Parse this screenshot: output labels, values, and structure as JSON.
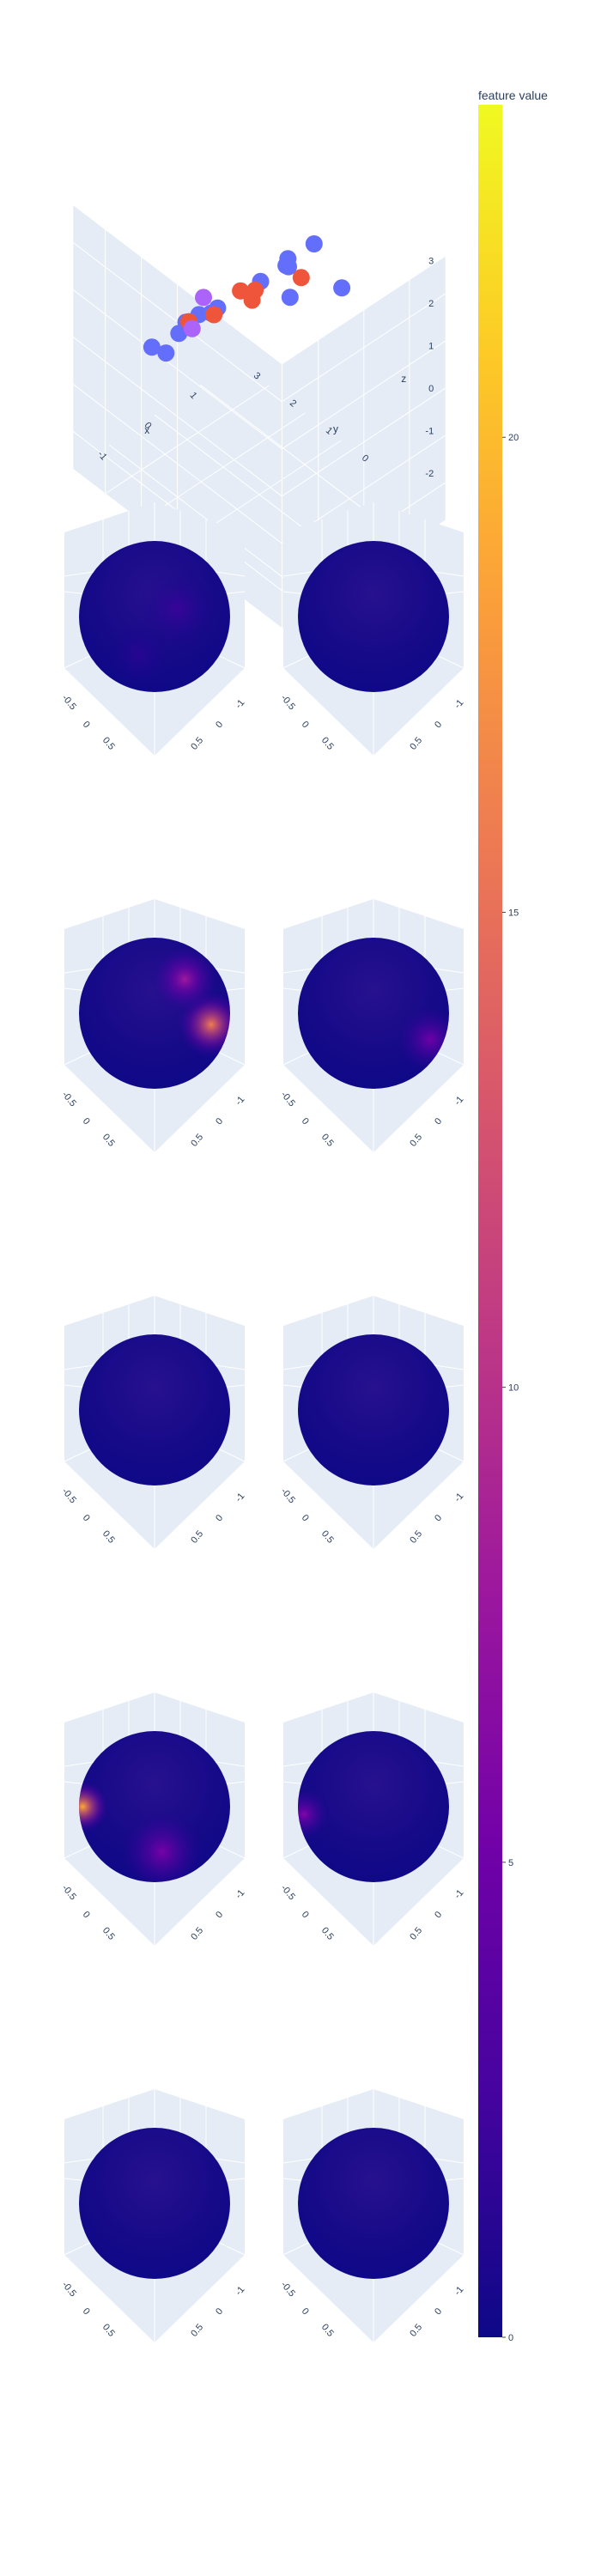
{
  "chart_data": [
    {
      "type": "scatter3d",
      "axes": {
        "x": {
          "title": "x",
          "ticks": [
            "-1",
            "0",
            "1"
          ]
        },
        "y": {
          "title": "y",
          "ticks": [
            "0",
            "1",
            "2",
            "3"
          ]
        },
        "z": {
          "title": "z",
          "ticks": [
            "3",
            "2",
            "1",
            "0",
            "-1",
            "-2"
          ]
        }
      },
      "colors": {
        "blue": "#636efa",
        "red": "#ef553b",
        "purple": "#ab63fa"
      },
      "points": [
        {
          "x": 0.2,
          "y": -0.6,
          "z": 1.6,
          "color": "blue"
        },
        {
          "x": -0.6,
          "y": 0.4,
          "z": 1.3,
          "color": "blue"
        },
        {
          "x": 1.1,
          "y": -0.9,
          "z": 1.4,
          "color": "blue"
        },
        {
          "x": 1.6,
          "y": 0.5,
          "z": 1.2,
          "color": "blue"
        },
        {
          "x": -0.9,
          "y": 0.9,
          "z": 0.9,
          "color": "blue"
        },
        {
          "x": -1.1,
          "y": 1.2,
          "z": 0.2,
          "color": "blue"
        },
        {
          "x": -0.5,
          "y": 1.6,
          "z": 0.0,
          "color": "blue"
        },
        {
          "x": 0.1,
          "y": 1.8,
          "z": -0.1,
          "color": "blue"
        },
        {
          "x": 0.9,
          "y": 1.1,
          "z": 0.5,
          "color": "blue"
        },
        {
          "x": 1.3,
          "y": 0.9,
          "z": 0.7,
          "color": "blue"
        },
        {
          "x": 1.5,
          "y": 1.1,
          "z": 0.6,
          "color": "blue"
        },
        {
          "x": 0.8,
          "y": 0.2,
          "z": 1.4,
          "color": "blue"
        },
        {
          "x": -0.3,
          "y": 2.6,
          "z": -1.0,
          "color": "blue"
        },
        {
          "x": -0.9,
          "y": 0.2,
          "z": 1.5,
          "color": "blue"
        },
        {
          "x": 0.0,
          "y": 0.2,
          "z": 1.2,
          "color": "red"
        },
        {
          "x": -0.6,
          "y": 0.5,
          "z": 1.1,
          "color": "red"
        },
        {
          "x": 1.0,
          "y": 0.1,
          "z": 1.1,
          "color": "red"
        },
        {
          "x": 0.3,
          "y": 0.9,
          "z": 0.8,
          "color": "red"
        },
        {
          "x": 0.7,
          "y": 1.0,
          "z": 0.5,
          "color": "red"
        },
        {
          "x": -0.2,
          "y": 1.7,
          "z": 0.0,
          "color": "red"
        },
        {
          "x": -1.0,
          "y": 0.6,
          "z": 1.0,
          "color": "purple"
        },
        {
          "x": 0.2,
          "y": 1.8,
          "z": 0.2,
          "color": "purple"
        }
      ]
    },
    {
      "type": "surface-sphere-grid",
      "rows": 5,
      "cols": 2,
      "tick_labels": {
        "a": "-0.5",
        "b": "0",
        "c": "0.5",
        "d": "-1"
      },
      "spheres": [
        {
          "row": 0,
          "col": 0,
          "hotspots": [
            {
              "dx": 0.3,
              "dy": -0.1,
              "r": 0.5,
              "v": 2.0
            },
            {
              "dx": -0.2,
              "dy": 0.5,
              "r": 0.4,
              "v": 1.2
            }
          ]
        },
        {
          "row": 0,
          "col": 1,
          "hotspots": []
        },
        {
          "row": 1,
          "col": 0,
          "hotspots": [
            {
              "dx": 0.75,
              "dy": 0.15,
              "r": 0.45,
              "v": 16
            },
            {
              "dx": 0.4,
              "dy": -0.45,
              "r": 0.45,
              "v": 8
            }
          ]
        },
        {
          "row": 1,
          "col": 1,
          "hotspots": [
            {
              "dx": 0.75,
              "dy": 0.35,
              "r": 0.45,
              "v": 5
            }
          ]
        },
        {
          "row": 2,
          "col": 0,
          "hotspots": []
        },
        {
          "row": 2,
          "col": 1,
          "hotspots": []
        },
        {
          "row": 3,
          "col": 0,
          "hotspots": [
            {
              "dx": -0.95,
              "dy": 0.0,
              "r": 0.35,
              "v": 19
            },
            {
              "dx": 0.1,
              "dy": 0.6,
              "r": 0.55,
              "v": 5.5
            }
          ]
        },
        {
          "row": 3,
          "col": 1,
          "hotspots": [
            {
              "dx": -0.92,
              "dy": 0.1,
              "r": 0.35,
              "v": 6
            }
          ]
        },
        {
          "row": 4,
          "col": 0,
          "hotspots": []
        },
        {
          "row": 4,
          "col": 1,
          "hotspots": []
        }
      ]
    },
    {
      "type": "colorbar",
      "title": "feature value",
      "colorscale": "plasma",
      "range": [
        0,
        23.5
      ],
      "ticks": [
        {
          "value": 0,
          "label": "0"
        },
        {
          "value": 5,
          "label": "5"
        },
        {
          "value": 10,
          "label": "10"
        },
        {
          "value": 15,
          "label": "15"
        },
        {
          "value": 20,
          "label": "20"
        }
      ]
    }
  ]
}
